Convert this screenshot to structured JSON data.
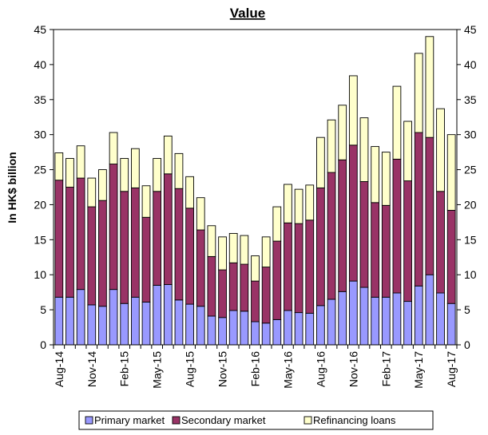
{
  "chart_data": {
    "type": "bar",
    "stacked": true,
    "title": "Value",
    "xlabel": "",
    "ylabel": "In HK$ billion",
    "ylim": [
      0,
      45
    ],
    "yticks": [
      0,
      5,
      10,
      15,
      20,
      25,
      30,
      35,
      40,
      45
    ],
    "y_axis_right": true,
    "grid": "none",
    "legend_position": "bottom",
    "categories": [
      "Aug-14",
      "Sep-14",
      "Oct-14",
      "Nov-14",
      "Dec-14",
      "Jan-15",
      "Feb-15",
      "Mar-15",
      "Apr-15",
      "May-15",
      "Jun-15",
      "Jul-15",
      "Aug-15",
      "Sep-15",
      "Oct-15",
      "Nov-15",
      "Dec-15",
      "Jan-16",
      "Feb-16",
      "Mar-16",
      "Apr-16",
      "May-16",
      "Jun-16",
      "Jul-16",
      "Aug-16",
      "Sep-16",
      "Oct-16",
      "Nov-16",
      "Dec-16",
      "Jan-17",
      "Feb-17",
      "Mar-17",
      "Apr-17",
      "May-17",
      "Jun-17",
      "Jul-17",
      "Aug-17"
    ],
    "xtick_labels": [
      "Aug-14",
      "Nov-14",
      "Feb-15",
      "May-15",
      "Aug-15",
      "Nov-15",
      "Feb-16",
      "May-16",
      "Aug-16",
      "Nov-16",
      "Feb-17",
      "May-17",
      "Aug-17"
    ],
    "series": [
      {
        "name": "Primary market",
        "color": "#9999ff",
        "values": [
          6.8,
          6.8,
          7.9,
          5.7,
          5.5,
          7.9,
          5.9,
          6.8,
          6.1,
          8.5,
          8.6,
          6.4,
          5.8,
          5.5,
          4.1,
          3.9,
          4.9,
          4.8,
          3.3,
          3.1,
          3.6,
          4.9,
          4.6,
          4.5,
          5.6,
          6.5,
          7.6,
          9.1,
          8.2,
          6.8,
          6.8,
          7.4,
          6.2,
          8.4,
          10.0,
          7.4,
          5.9
        ]
      },
      {
        "name": "Secondary market",
        "color": "#993366",
        "values": [
          16.7,
          15.7,
          15.9,
          14.0,
          15.1,
          17.9,
          16.0,
          15.6,
          12.1,
          13.4,
          15.8,
          15.9,
          13.7,
          10.9,
          8.5,
          6.8,
          6.8,
          6.7,
          5.8,
          8.0,
          11.2,
          12.5,
          12.7,
          13.3,
          16.8,
          18.1,
          18.8,
          19.4,
          15.1,
          13.5,
          13.1,
          19.1,
          17.2,
          21.9,
          19.6,
          14.5,
          13.3
        ]
      },
      {
        "name": "Refinancing loans",
        "color": "#ffffcc",
        "values": [
          3.9,
          4.1,
          4.6,
          4.1,
          4.4,
          4.5,
          4.7,
          5.6,
          4.5,
          4.7,
          5.4,
          5.0,
          4.5,
          4.6,
          4.4,
          4.7,
          4.2,
          4.1,
          3.6,
          4.3,
          4.9,
          5.5,
          4.9,
          5.0,
          7.2,
          7.5,
          7.8,
          9.9,
          9.1,
          8.0,
          7.6,
          10.4,
          8.5,
          11.3,
          14.4,
          11.8,
          10.8
        ]
      }
    ]
  }
}
